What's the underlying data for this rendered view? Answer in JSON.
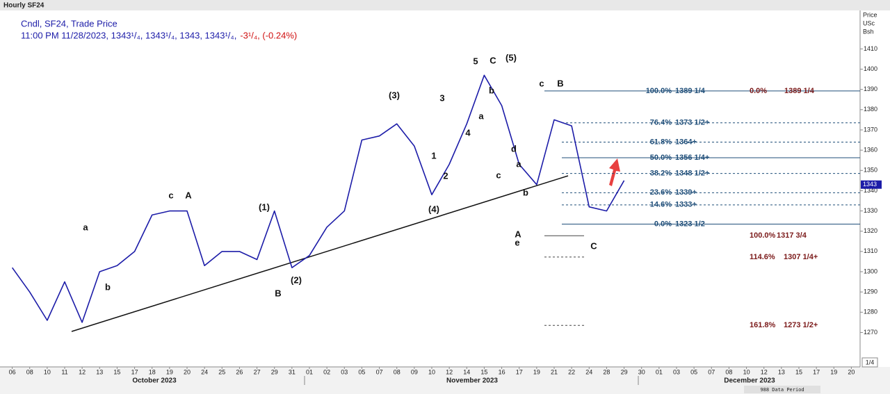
{
  "chart_data": {
    "type": "line",
    "title": "Hourly SF24",
    "subtitle": "Cndl, SF24, Trade Price",
    "quote": "11:00 PM 11/28/2023, 1343¹/₄, 1343¹/₄, 1343, 1343¹/₄,",
    "change": "-3¹/₄, (-0.24%)",
    "y_axis_label": [
      "Price",
      "USc",
      "Bsh"
    ],
    "color": "#1c1ca8",
    "categories": [
      "06",
      "08",
      "10",
      "11",
      "12",
      "13",
      "15",
      "17",
      "18",
      "19",
      "20",
      "24",
      "25",
      "26",
      "27",
      "29",
      "31",
      "01",
      "02",
      "03",
      "05",
      "07",
      "08",
      "09",
      "10",
      "12",
      "14",
      "15",
      "16",
      "17",
      "19",
      "21",
      "22",
      "24",
      "28",
      "29",
      "30",
      "01",
      "03",
      "05",
      "07",
      "08",
      "10",
      "12",
      "13",
      "15",
      "17",
      "19",
      "20"
    ],
    "months": [
      "October 2023",
      "November 2023",
      "December 2023"
    ],
    "values": [
      1302,
      1290,
      1276,
      1295,
      1275,
      1300,
      1303,
      1310,
      1328,
      1330,
      1330,
      1303,
      1310,
      1310,
      1306,
      1330,
      1302,
      1308,
      1322,
      1330,
      1365,
      1367,
      1373,
      1362,
      1338,
      1353,
      1373,
      1397,
      1382,
      1353,
      1343,
      1375,
      1372,
      1332,
      1330,
      1345,
      null,
      null,
      null,
      null,
      null,
      null,
      null,
      null,
      null,
      null,
      null,
      null,
      null
    ],
    "ylim": [
      1253,
      1429
    ],
    "yticks": [
      1270,
      1280,
      1290,
      1300,
      1310,
      1320,
      1330,
      1340,
      1350,
      1360,
      1370,
      1380,
      1390,
      1400,
      1410
    ],
    "last_price": 1343,
    "fib_color": "#1f4e79",
    "fib_levels": [
      {
        "value": 1389.25,
        "pct": "100.0%",
        "label": "1389 1/4",
        "style": "solid"
      },
      {
        "value": 1373.5,
        "pct": "76.4%",
        "label": "1373 1/2+",
        "style": "dashed"
      },
      {
        "value": 1364,
        "pct": "61.8%",
        "label": "1364+",
        "style": "dashed"
      },
      {
        "value": 1356.25,
        "pct": "50.0%",
        "label": "1356 1/4+",
        "style": "solid"
      },
      {
        "value": 1348.5,
        "pct": "38.2%",
        "label": "1348 1/2+",
        "style": "dashed"
      },
      {
        "value": 1339,
        "pct": "23.6%",
        "label": "1339+",
        "style": "dashed"
      },
      {
        "value": 1333,
        "pct": "14.6%",
        "label": "1333+",
        "style": "dashed"
      },
      {
        "value": 1323.5,
        "pct": "0.0%",
        "label": "1323 1/2",
        "style": "solid"
      }
    ],
    "projection_color": "#7b1a1a",
    "projections": [
      {
        "value": 1389.25,
        "pct": "0.0%",
        "label": "1389 1/4",
        "style": "none"
      },
      {
        "value": 1317.75,
        "pct": "100.0%",
        "label": "1317 3/4",
        "style": "solid"
      },
      {
        "value": 1307.25,
        "pct": "114.6%",
        "label": "1307 1/4+",
        "style": "dashed"
      },
      {
        "value": 1273.5,
        "pct": "161.8%",
        "label": "1273 1/2+",
        "style": "dashed"
      }
    ],
    "waves": [
      "a",
      "b",
      "c",
      "A",
      "(1)",
      "(2)",
      "B",
      "(3)",
      "1",
      "2",
      "(4)",
      "3",
      "4",
      "5",
      "C",
      "(5)",
      "b",
      "a",
      "c",
      "d",
      "a",
      "b",
      "e",
      "A",
      "c",
      "B",
      "C"
    ],
    "scale_box": "1/4",
    "footer": "988 Data Period"
  }
}
